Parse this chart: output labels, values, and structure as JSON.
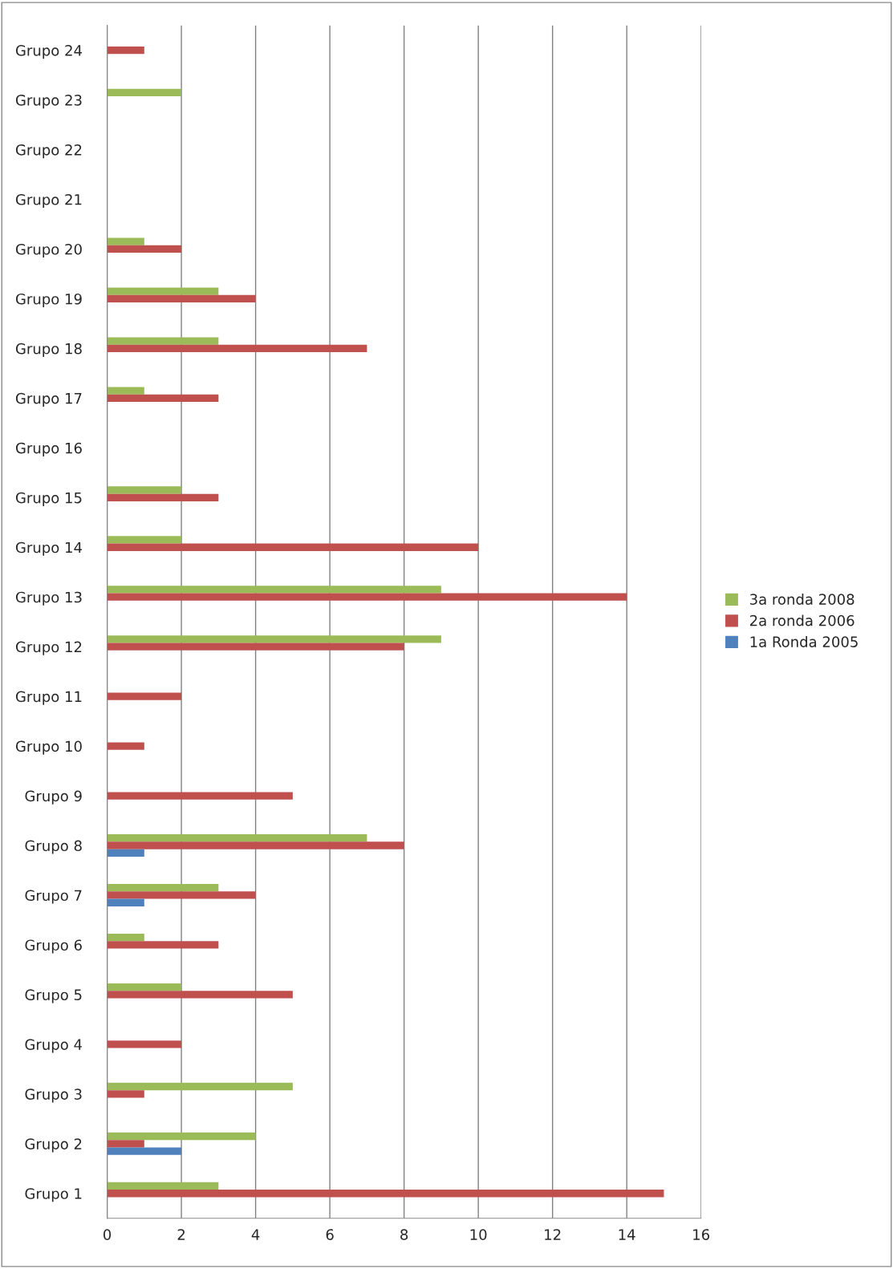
{
  "chart_data": {
    "type": "bar",
    "orientation": "horizontal",
    "categories": [
      "Grupo 24",
      "Grupo 23",
      "Grupo 22",
      "Grupo 21",
      "Grupo 20",
      "Grupo 19",
      "Grupo 18",
      "Grupo 17",
      "Grupo 16",
      "Grupo 15",
      "Grupo 14",
      "Grupo 13",
      "Grupo 12",
      "Grupo 11",
      "Grupo 10",
      "Grupo 9",
      "Grupo 8",
      "Grupo 7",
      "Grupo 6",
      "Grupo 5",
      "Grupo 4",
      "Grupo 3",
      "Grupo 2",
      "Grupo 1"
    ],
    "series": [
      {
        "name": "3a ronda 2008",
        "color": "#9bbb59",
        "values": [
          null,
          2,
          null,
          null,
          1,
          3,
          3,
          1,
          null,
          2,
          2,
          9,
          9,
          null,
          null,
          null,
          7,
          3,
          1,
          2,
          null,
          5,
          4,
          3
        ]
      },
      {
        "name": "2a ronda 2006",
        "color": "#c0504d",
        "values": [
          1,
          null,
          null,
          null,
          2,
          4,
          7,
          3,
          null,
          3,
          10,
          14,
          8,
          2,
          1,
          5,
          8,
          4,
          3,
          5,
          2,
          1,
          1,
          15
        ]
      },
      {
        "name": "1a Ronda 2005",
        "color": "#4f81bd",
        "values": [
          null,
          null,
          null,
          null,
          null,
          null,
          null,
          null,
          null,
          null,
          null,
          null,
          null,
          null,
          null,
          null,
          1,
          1,
          null,
          null,
          null,
          null,
          2,
          null
        ]
      }
    ],
    "xlim": [
      0,
      16
    ],
    "xticks": [
      0,
      2,
      4,
      6,
      8,
      10,
      12,
      14,
      16
    ],
    "grid": "x",
    "legend": "right"
  }
}
